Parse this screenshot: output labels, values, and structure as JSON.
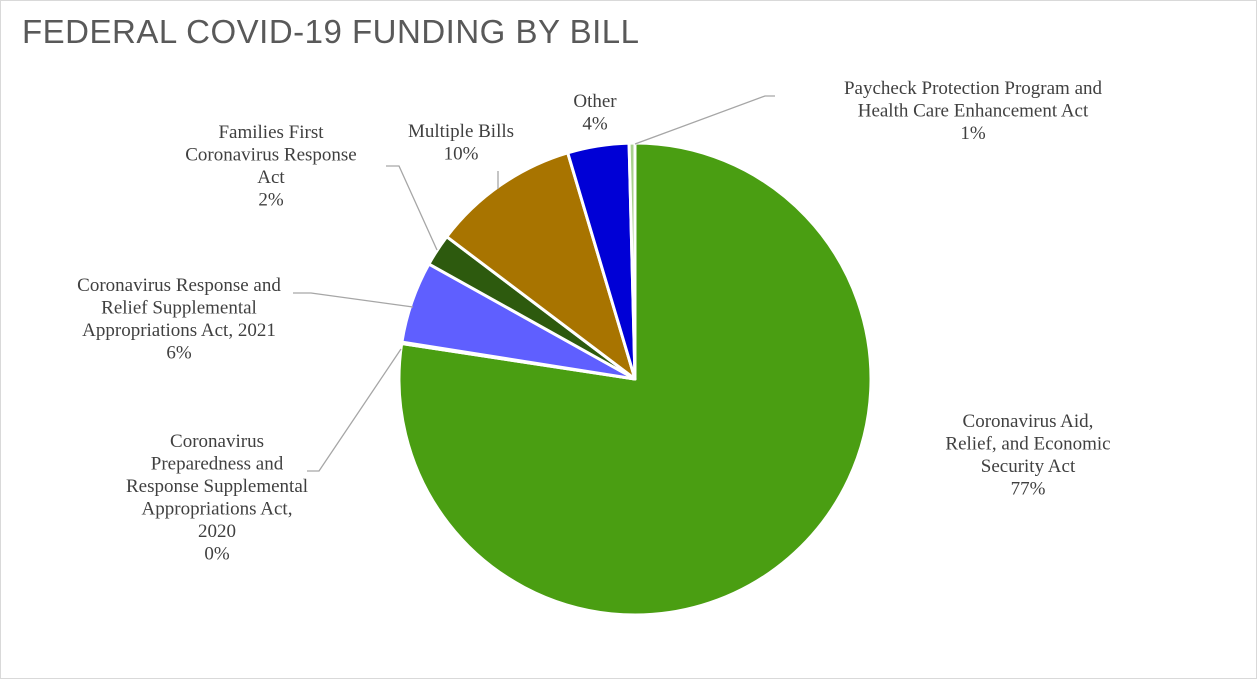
{
  "chart_data": {
    "type": "pie",
    "title": "FEDERAL COVID-19 FUNDING BY BILL",
    "slices": [
      {
        "name": "Coronavirus Aid, Relief, and Economic Security Act",
        "label_lines": [
          "Coronavirus Aid,",
          "Relief, and Economic",
          "Security Act"
        ],
        "pct_label": "77%",
        "value": 77.4,
        "color": "#4a9e12"
      },
      {
        "name": "Coronavirus Preparedness and Response Supplemental Appropriations Act, 2020",
        "label_lines": [
          "Coronavirus",
          "Preparedness and",
          "Response Supplemental",
          "Appropriations Act,",
          "2020"
        ],
        "pct_label": "0%",
        "value": 0.1,
        "color": "#70ad47"
      },
      {
        "name": "Coronavirus Response and Relief Supplemental Appropriations Act, 2021",
        "label_lines": [
          "Coronavirus Response and",
          "Relief Supplemental",
          "Appropriations Act, 2021"
        ],
        "pct_label": "6%",
        "value": 5.6,
        "color": "#5f5fff"
      },
      {
        "name": "Families First Coronavirus Response Act",
        "label_lines": [
          "Families First",
          "Coronavirus Response",
          "Act"
        ],
        "pct_label": "2%",
        "value": 2.2,
        "color": "#2d5a0e"
      },
      {
        "name": "Multiple Bills",
        "label_lines": [
          "Multiple Bills"
        ],
        "pct_label": "10%",
        "value": 10.1,
        "color": "#a87400"
      },
      {
        "name": "Other",
        "label_lines": [
          "Other"
        ],
        "pct_label": "4%",
        "value": 4.2,
        "color": "#0000d6"
      },
      {
        "name": "Paycheck Protection Program and Health Care Enhancement Act",
        "label_lines": [
          "Paycheck Protection Program and",
          "Health Care Enhancement Act"
        ],
        "pct_label": "1%",
        "value": 0.4,
        "color": "#a9d18e"
      }
    ]
  }
}
